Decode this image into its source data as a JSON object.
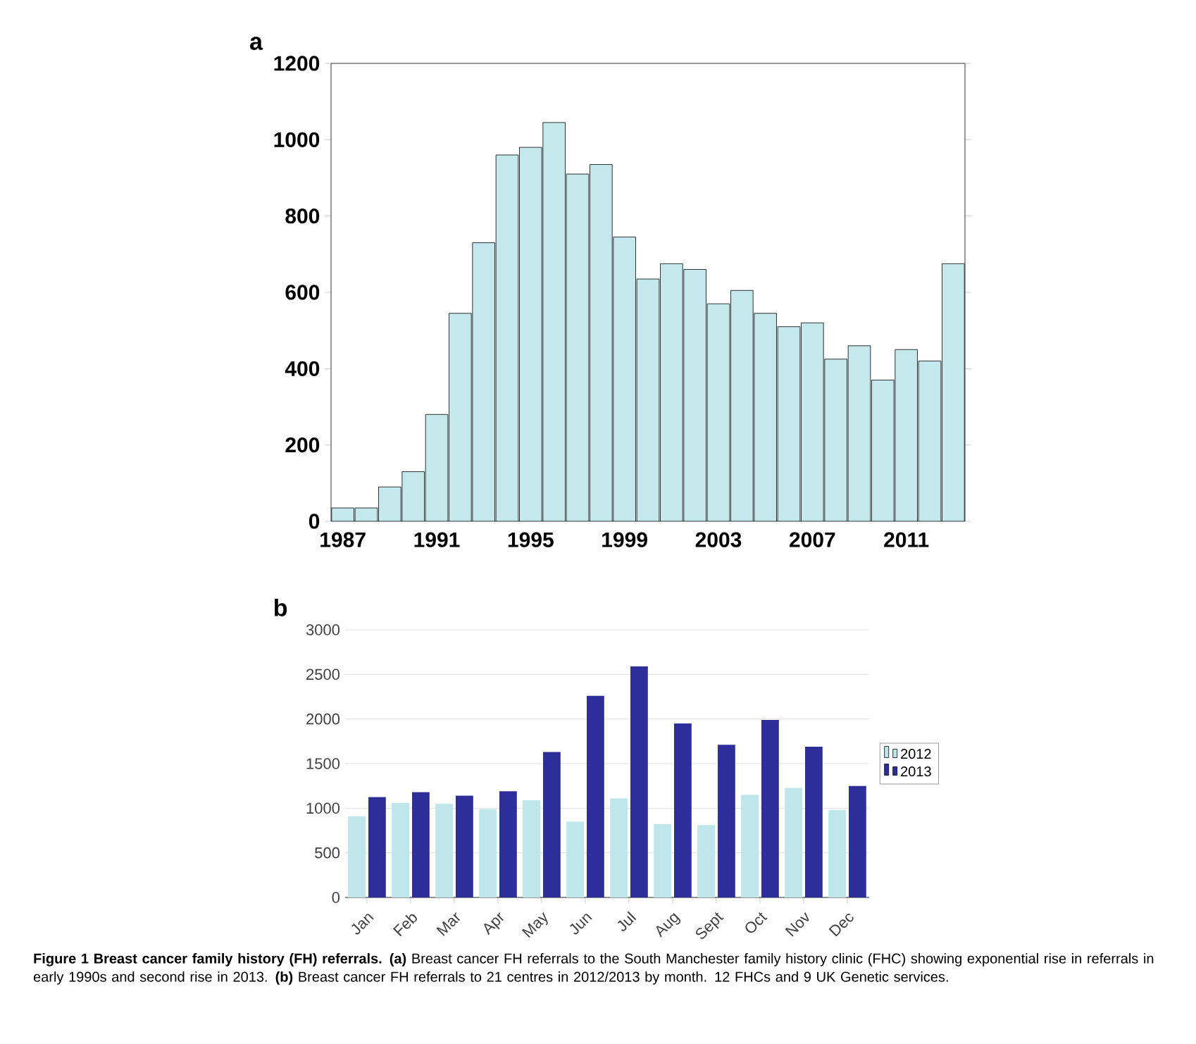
{
  "chart_data": [
    {
      "type": "bar",
      "title": "a",
      "categories": [
        "1987",
        null,
        null,
        null,
        "1991",
        null,
        null,
        null,
        "1995",
        null,
        null,
        null,
        "1999",
        null,
        null,
        null,
        "2003",
        null,
        null,
        null,
        "2007",
        null,
        null,
        null,
        "2011",
        null,
        null
      ],
      "values": [
        35,
        35,
        90,
        130,
        280,
        545,
        730,
        960,
        980,
        1045,
        910,
        935,
        745,
        635,
        675,
        660,
        570,
        605,
        545,
        510,
        520,
        425,
        460,
        370,
        450,
        420,
        675
      ],
      "color": "#c5e8ec",
      "ylim": [
        0,
        1200
      ],
      "yticks": [
        0,
        200,
        400,
        600,
        800,
        1000,
        1200
      ]
    },
    {
      "type": "bar",
      "title": "b",
      "categories": [
        "Jan",
        "Feb",
        "Mar",
        "Apr",
        "May",
        "Jun",
        "Jul",
        "Aug",
        "Sept",
        "Oct",
        "Nov",
        "Dec"
      ],
      "series": [
        {
          "name": "2012",
          "color": "#bfe6ea",
          "values": [
            910,
            1060,
            1050,
            990,
            1090,
            850,
            1110,
            820,
            810,
            1150,
            1230,
            980
          ]
        },
        {
          "name": "2013",
          "color": "#2e2e9a",
          "values": [
            1125,
            1180,
            1140,
            1190,
            1630,
            2260,
            2590,
            1950,
            1710,
            1990,
            1690,
            1250
          ]
        }
      ],
      "ylim": [
        0,
        3000
      ],
      "yticks": [
        0,
        500,
        1000,
        1500,
        2000,
        2500,
        3000
      ],
      "grid": "y",
      "legend": "right",
      "annotations": [
        "**Figure 1 Breast cancer family history (FH) referrals.** **(a)** Breast cancer FH referrals to the South Manchester family history clinic (FHC) showing exponential rise in referrals in early 1990s and second rise in 2013. **(b)** Breast cancer FH referrals to 21 centres in 2012/2013 by month. 12 FHCs and 9 UK Genetic services."
      ]
    }
  ]
}
